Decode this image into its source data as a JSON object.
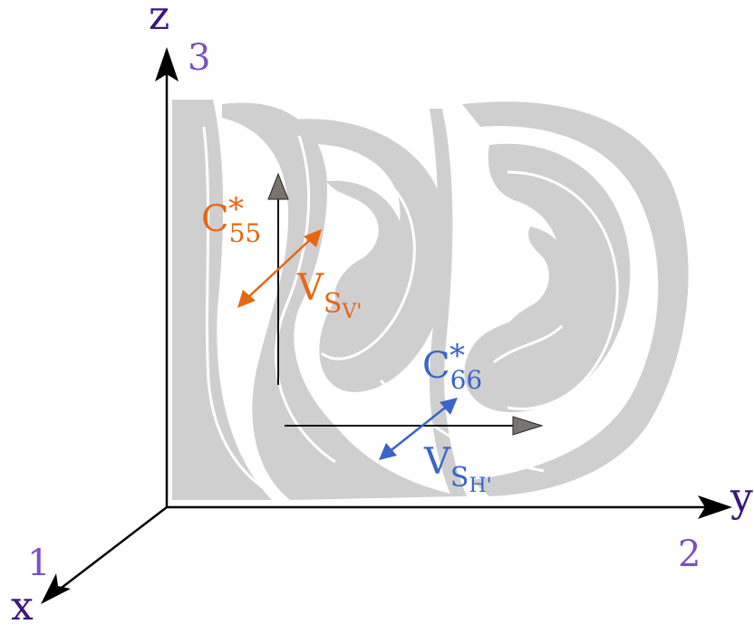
{
  "axes": {
    "z": {
      "name": "z",
      "index": "3"
    },
    "y": {
      "name": "y",
      "index": "2"
    },
    "x": {
      "name": "x",
      "index": "1"
    }
  },
  "vertical_vector": {
    "stiffness": "C",
    "star": "*",
    "subscript": "55",
    "velocity": "V",
    "vsub": "S",
    "vsubsub": "V'"
  },
  "horizontal_vector": {
    "stiffness": "C",
    "star": "*",
    "subscript": "66",
    "velocity": "V",
    "vsub": "S",
    "vsubsub": "H'"
  },
  "colors": {
    "orange": "#e8660f",
    "blue": "#3a64c8",
    "axis_label": "#7b4fc9",
    "fluid": "#cfcfcf",
    "arrow_grey": "#7a7470"
  }
}
